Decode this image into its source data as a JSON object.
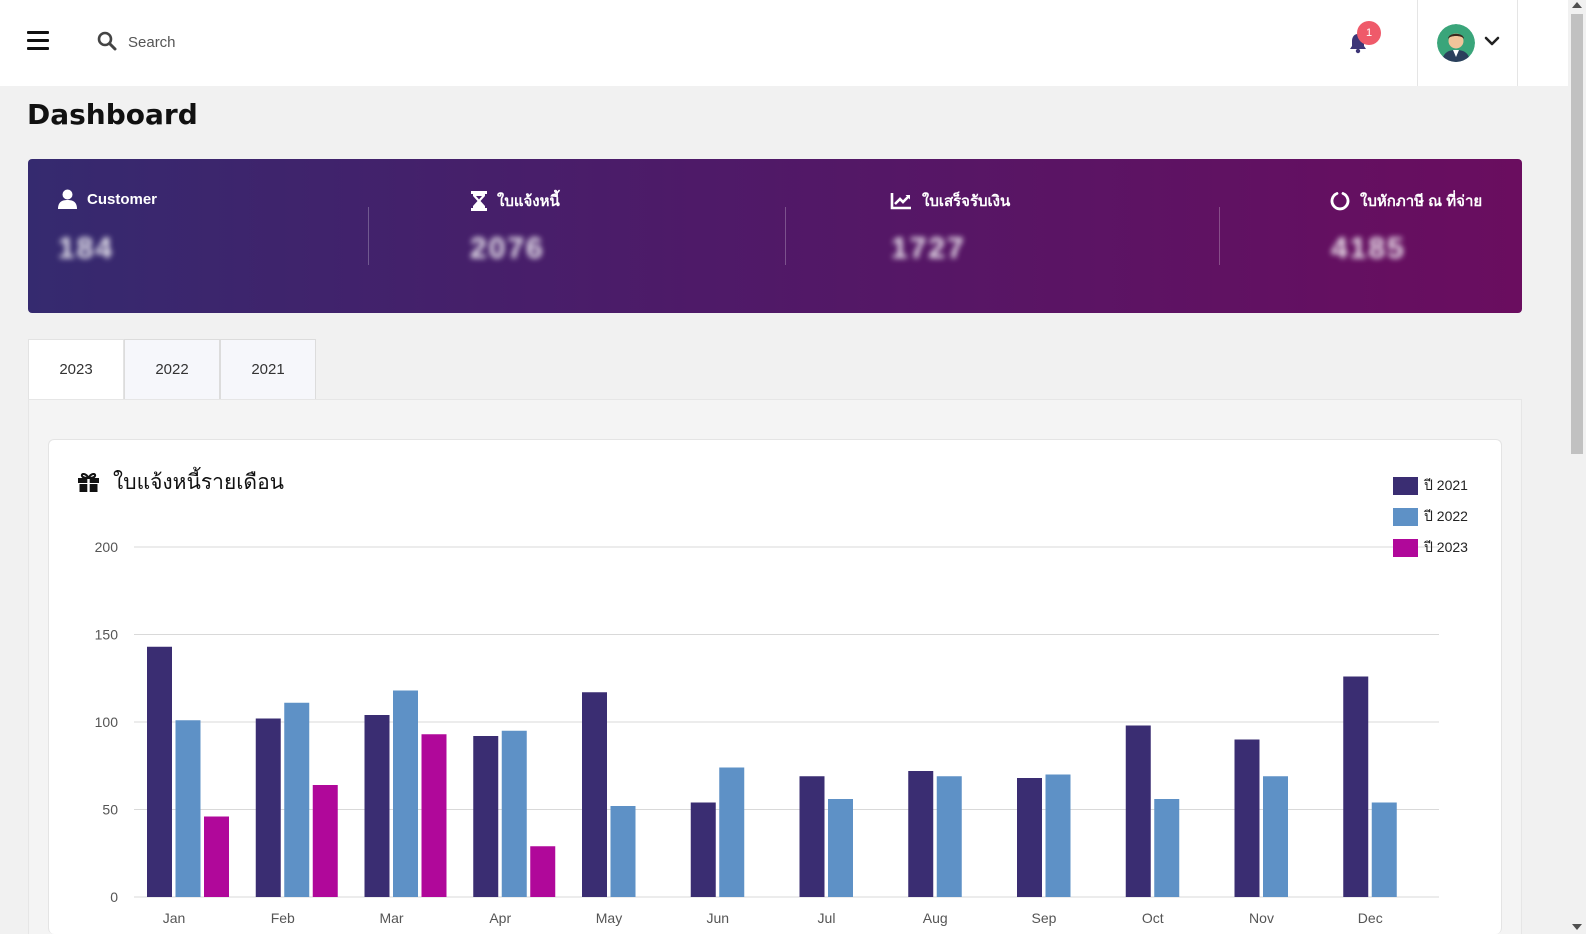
{
  "topbar": {
    "search_placeholder": "Search",
    "notification_count": "1",
    "icons": {
      "menu": "hamburger-icon",
      "search": "search-icon",
      "notifications": "bell-icon",
      "user_menu": "chevron-down-icon"
    }
  },
  "page_title": "Dashboard",
  "stats": [
    {
      "label": "Customer",
      "value": "184",
      "icon": "user-icon"
    },
    {
      "label": "ใบแจ้งหนี้",
      "value": "2076",
      "icon": "hourglass-icon"
    },
    {
      "label": "ใบเสร็จรับเงิน",
      "value": "1727",
      "icon": "line-chart-icon"
    },
    {
      "label": "ใบหักภาษี ณ ที่จ่าย",
      "value": "4185",
      "icon": "circle-notch-icon"
    }
  ],
  "banner_colors": {
    "start": "#352a6f",
    "end": "#6a0d5f"
  },
  "tabs": [
    {
      "label": "2023",
      "active": true
    },
    {
      "label": "2022",
      "active": false
    },
    {
      "label": "2021",
      "active": false
    }
  ],
  "chart_card": {
    "title": "ใบแจ้งหนี้รายเดือน",
    "icon": "gift-icon"
  },
  "chart_data": {
    "type": "bar",
    "title": "ใบแจ้งหนี้รายเดือน",
    "categories": [
      "Jan",
      "Feb",
      "Mar",
      "Apr",
      "May",
      "Jun",
      "Jul",
      "Aug",
      "Sep",
      "Oct",
      "Nov",
      "Dec"
    ],
    "series": [
      {
        "name": "ปี 2021",
        "color": "#3a2d72",
        "values": [
          143,
          102,
          104,
          92,
          117,
          54,
          69,
          72,
          68,
          98,
          90,
          126
        ]
      },
      {
        "name": "ปี 2022",
        "color": "#5e91c6",
        "values": [
          101,
          111,
          118,
          95,
          52,
          74,
          56,
          69,
          70,
          56,
          69,
          54
        ]
      },
      {
        "name": "ปี 2023",
        "color": "#b0089a",
        "values": [
          46,
          64,
          93,
          29,
          0,
          0,
          0,
          0,
          0,
          0,
          0,
          0
        ]
      }
    ],
    "yticks": [
      0,
      50,
      100,
      150,
      200
    ],
    "ylim": [
      0,
      200
    ],
    "grid": true,
    "legend_position": "top-right",
    "xlabel": "",
    "ylabel": ""
  }
}
